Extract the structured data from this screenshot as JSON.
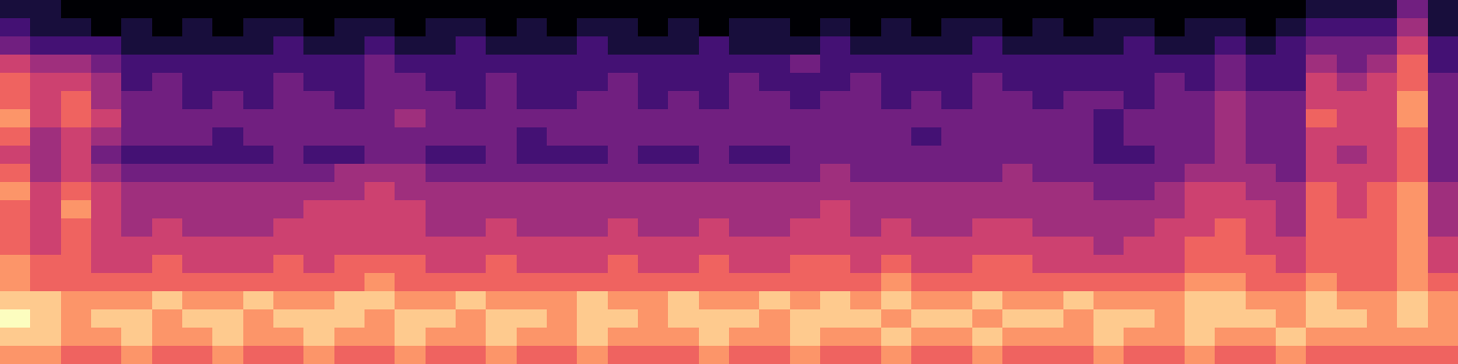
{
  "chart_data": {
    "type": "heatmap",
    "tick_labels": false,
    "zlim": [
      0,
      9
    ],
    "cells": [
      [
        1,
        1,
        0,
        0,
        0,
        0,
        0,
        0,
        0,
        0,
        0,
        0,
        0,
        0,
        0,
        0,
        0,
        0,
        0,
        0,
        0,
        0,
        0,
        0,
        0,
        0,
        0,
        0,
        0,
        0,
        0,
        0,
        0,
        0,
        0,
        0,
        0,
        0,
        0,
        0,
        0,
        0,
        0,
        1,
        1,
        1,
        3,
        1
      ],
      [
        2,
        1,
        1,
        0,
        1,
        0,
        1,
        0,
        1,
        1,
        0,
        1,
        1,
        0,
        1,
        1,
        0,
        1,
        0,
        1,
        1,
        0,
        1,
        0,
        1,
        1,
        0,
        1,
        0,
        1,
        0,
        1,
        1,
        0,
        1,
        0,
        1,
        1,
        0,
        1,
        1,
        0,
        1,
        2,
        2,
        2,
        4,
        1
      ],
      [
        3,
        2,
        2,
        2,
        1,
        1,
        1,
        1,
        1,
        2,
        1,
        1,
        2,
        1,
        1,
        2,
        1,
        1,
        1,
        2,
        1,
        1,
        1,
        2,
        1,
        1,
        1,
        2,
        1,
        1,
        1,
        1,
        2,
        1,
        1,
        1,
        1,
        2,
        1,
        1,
        2,
        1,
        2,
        3,
        3,
        3,
        5,
        2
      ],
      [
        5,
        4,
        4,
        3,
        2,
        2,
        2,
        2,
        2,
        2,
        2,
        2,
        3,
        2,
        2,
        2,
        2,
        2,
        2,
        2,
        2,
        2,
        2,
        2,
        2,
        2,
        3,
        2,
        2,
        2,
        2,
        2,
        2,
        2,
        2,
        2,
        2,
        2,
        2,
        2,
        3,
        2,
        2,
        4,
        3,
        4,
        6,
        2
      ],
      [
        6,
        5,
        5,
        4,
        2,
        3,
        2,
        2,
        2,
        3,
        2,
        2,
        3,
        3,
        2,
        2,
        3,
        2,
        2,
        2,
        3,
        2,
        2,
        2,
        3,
        2,
        2,
        2,
        3,
        2,
        2,
        2,
        3,
        2,
        2,
        2,
        2,
        2,
        3,
        2,
        3,
        2,
        2,
        5,
        4,
        5,
        6,
        3
      ],
      [
        6,
        5,
        6,
        4,
        3,
        3,
        2,
        3,
        2,
        3,
        3,
        2,
        3,
        3,
        3,
        2,
        3,
        2,
        2,
        3,
        3,
        2,
        3,
        2,
        3,
        3,
        2,
        3,
        3,
        2,
        3,
        2,
        3,
        3,
        2,
        3,
        3,
        2,
        3,
        3,
        4,
        3,
        3,
        5,
        5,
        5,
        7,
        3
      ],
      [
        7,
        5,
        6,
        5,
        3,
        3,
        3,
        3,
        3,
        3,
        3,
        3,
        3,
        4,
        3,
        3,
        3,
        3,
        3,
        3,
        3,
        3,
        3,
        3,
        3,
        3,
        3,
        3,
        3,
        3,
        3,
        3,
        3,
        3,
        3,
        3,
        2,
        3,
        3,
        3,
        4,
        3,
        3,
        6,
        5,
        5,
        7,
        3
      ],
      [
        6,
        4,
        5,
        4,
        3,
        3,
        3,
        2,
        3,
        3,
        3,
        3,
        3,
        3,
        3,
        3,
        3,
        2,
        3,
        3,
        3,
        3,
        3,
        3,
        3,
        3,
        3,
        3,
        3,
        3,
        2,
        3,
        3,
        3,
        3,
        3,
        2,
        3,
        3,
        3,
        4,
        3,
        3,
        5,
        5,
        5,
        6,
        3
      ],
      [
        5,
        4,
        5,
        3,
        2,
        2,
        2,
        2,
        2,
        3,
        2,
        2,
        3,
        3,
        2,
        2,
        3,
        2,
        2,
        2,
        3,
        2,
        2,
        3,
        2,
        2,
        3,
        3,
        3,
        3,
        3,
        3,
        3,
        3,
        3,
        3,
        2,
        2,
        3,
        3,
        4,
        3,
        3,
        5,
        4,
        5,
        6,
        3
      ],
      [
        6,
        4,
        5,
        4,
        3,
        3,
        3,
        3,
        3,
        3,
        3,
        4,
        4,
        4,
        3,
        3,
        3,
        3,
        3,
        3,
        3,
        3,
        3,
        3,
        3,
        3,
        3,
        4,
        3,
        3,
        3,
        3,
        3,
        4,
        3,
        3,
        3,
        3,
        3,
        4,
        4,
        4,
        3,
        5,
        5,
        5,
        6,
        3
      ],
      [
        7,
        5,
        6,
        5,
        4,
        4,
        4,
        4,
        4,
        4,
        4,
        4,
        5,
        4,
        4,
        4,
        4,
        4,
        4,
        4,
        4,
        4,
        4,
        4,
        4,
        4,
        4,
        4,
        4,
        4,
        4,
        4,
        4,
        4,
        4,
        4,
        3,
        3,
        4,
        5,
        5,
        4,
        4,
        6,
        5,
        6,
        7,
        4
      ],
      [
        6,
        5,
        7,
        5,
        4,
        4,
        4,
        4,
        4,
        4,
        5,
        5,
        5,
        5,
        4,
        4,
        4,
        4,
        4,
        4,
        4,
        4,
        4,
        4,
        4,
        4,
        4,
        5,
        4,
        4,
        4,
        4,
        4,
        4,
        4,
        4,
        4,
        4,
        4,
        5,
        5,
        5,
        4,
        6,
        5,
        6,
        7,
        4
      ],
      [
        6,
        5,
        6,
        5,
        4,
        5,
        4,
        4,
        4,
        5,
        5,
        5,
        5,
        5,
        4,
        4,
        5,
        4,
        4,
        4,
        5,
        4,
        4,
        5,
        4,
        4,
        5,
        5,
        4,
        5,
        4,
        4,
        5,
        5,
        4,
        4,
        4,
        4,
        5,
        5,
        6,
        5,
        4,
        6,
        6,
        6,
        7,
        4
      ],
      [
        6,
        5,
        6,
        5,
        5,
        5,
        5,
        5,
        5,
        5,
        5,
        5,
        5,
        5,
        5,
        5,
        5,
        5,
        5,
        5,
        5,
        5,
        5,
        5,
        5,
        5,
        5,
        5,
        5,
        5,
        5,
        5,
        5,
        5,
        5,
        5,
        4,
        5,
        5,
        6,
        6,
        5,
        5,
        6,
        6,
        6,
        7,
        5
      ],
      [
        7,
        6,
        6,
        5,
        5,
        6,
        5,
        5,
        5,
        6,
        5,
        6,
        6,
        6,
        5,
        5,
        6,
        5,
        5,
        5,
        6,
        5,
        5,
        6,
        5,
        5,
        6,
        6,
        5,
        6,
        5,
        5,
        6,
        6,
        5,
        5,
        5,
        5,
        5,
        6,
        6,
        6,
        5,
        6,
        6,
        6,
        7,
        5
      ],
      [
        7,
        6,
        6,
        6,
        6,
        6,
        6,
        6,
        6,
        6,
        6,
        6,
        7,
        6,
        6,
        6,
        6,
        6,
        6,
        6,
        6,
        6,
        6,
        6,
        6,
        6,
        6,
        6,
        6,
        7,
        6,
        6,
        6,
        6,
        6,
        6,
        6,
        6,
        6,
        7,
        7,
        6,
        6,
        7,
        6,
        6,
        7,
        6
      ],
      [
        8,
        8,
        7,
        7,
        7,
        8,
        7,
        7,
        8,
        7,
        7,
        8,
        8,
        7,
        7,
        8,
        7,
        7,
        7,
        8,
        7,
        7,
        8,
        7,
        7,
        8,
        7,
        8,
        7,
        8,
        7,
        7,
        8,
        7,
        7,
        8,
        7,
        7,
        7,
        8,
        8,
        7,
        7,
        8,
        7,
        7,
        8,
        7
      ],
      [
        9,
        8,
        7,
        8,
        8,
        7,
        8,
        8,
        7,
        8,
        8,
        8,
        7,
        8,
        8,
        7,
        8,
        8,
        7,
        8,
        8,
        7,
        8,
        8,
        8,
        7,
        8,
        8,
        8,
        7,
        8,
        8,
        7,
        8,
        8,
        7,
        8,
        8,
        7,
        8,
        8,
        8,
        7,
        8,
        8,
        7,
        8,
        7
      ],
      [
        8,
        8,
        7,
        7,
        8,
        7,
        7,
        8,
        7,
        7,
        8,
        7,
        7,
        8,
        7,
        7,
        8,
        7,
        7,
        8,
        7,
        7,
        7,
        8,
        7,
        7,
        8,
        7,
        7,
        8,
        7,
        7,
        8,
        7,
        7,
        7,
        8,
        7,
        7,
        8,
        7,
        7,
        8,
        7,
        7,
        7,
        7,
        7
      ],
      [
        7,
        7,
        6,
        6,
        7,
        6,
        6,
        7,
        6,
        6,
        7,
        6,
        6,
        7,
        6,
        6,
        7,
        6,
        6,
        7,
        6,
        6,
        6,
        7,
        6,
        6,
        7,
        6,
        6,
        7,
        6,
        6,
        7,
        6,
        6,
        6,
        7,
        6,
        6,
        7,
        6,
        6,
        7,
        6,
        6,
        6,
        6,
        6
      ]
    ]
  }
}
